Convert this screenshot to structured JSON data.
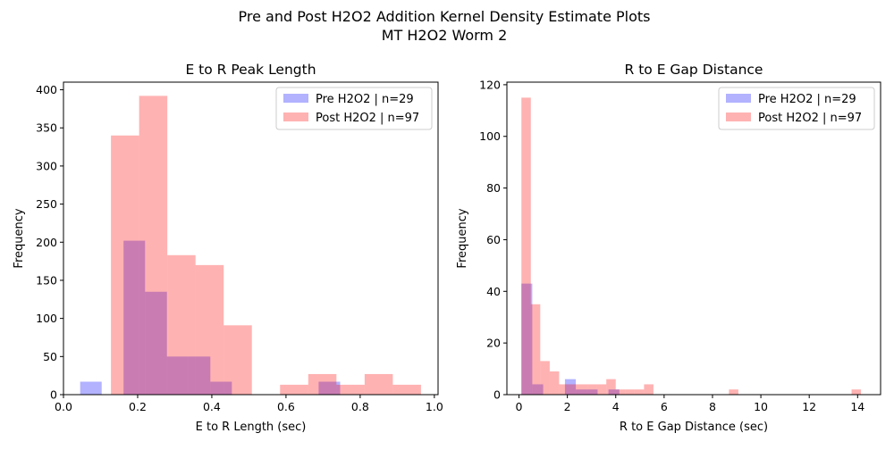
{
  "figure": {
    "title_line1": "Pre and Post H2O2 Addition Kernel Density Estimate Plots",
    "title_line2": "MT H2O2 Worm 2"
  },
  "colors": {
    "pre": "#0000ff",
    "post": "#ff0000",
    "pre_opacity": 0.3,
    "post_opacity": 0.3
  },
  "chart_data": [
    {
      "type": "histogram",
      "title": "E to R Peak Length",
      "xlabel": "E to R Length (sec)",
      "ylabel": "Frequency",
      "xlim": [
        0.0,
        1.01
      ],
      "ylim": [
        0,
        410
      ],
      "xticks": [
        0.0,
        0.2,
        0.4,
        0.6,
        0.8,
        1.0
      ],
      "xtick_labels": [
        "0.0",
        "0.2",
        "0.4",
        "0.6",
        "0.8",
        "1.0"
      ],
      "yticks": [
        0,
        50,
        100,
        150,
        200,
        250,
        300,
        350,
        400
      ],
      "ytick_labels": [
        "0",
        "50",
        "100",
        "150",
        "200",
        "250",
        "300",
        "350",
        "400"
      ],
      "legend_position": "upper right",
      "series": [
        {
          "name": "Pre H2O2 | n=29",
          "key": "pre",
          "bins": [
            [
              0.045,
              0.103,
              17
            ],
            [
              0.103,
              0.162,
              0
            ],
            [
              0.162,
              0.22,
              202
            ],
            [
              0.22,
              0.279,
              135
            ],
            [
              0.279,
              0.337,
              50
            ],
            [
              0.337,
              0.396,
              50
            ],
            [
              0.396,
              0.454,
              17
            ],
            [
              0.454,
              0.512,
              0
            ],
            [
              0.512,
              0.571,
              0
            ],
            [
              0.571,
              0.629,
              0
            ],
            [
              0.629,
              0.688,
              0
            ],
            [
              0.688,
              0.746,
              17
            ]
          ]
        },
        {
          "name": "Post H2O2 | n=97",
          "key": "post",
          "bins": [
            [
              0.128,
              0.204,
              340
            ],
            [
              0.204,
              0.28,
              392
            ],
            [
              0.28,
              0.356,
              183
            ],
            [
              0.356,
              0.432,
              170
            ],
            [
              0.432,
              0.508,
              91
            ],
            [
              0.508,
              0.584,
              0
            ],
            [
              0.584,
              0.66,
              13
            ],
            [
              0.66,
              0.736,
              27
            ],
            [
              0.736,
              0.812,
              13
            ],
            [
              0.812,
              0.888,
              27
            ],
            [
              0.888,
              0.964,
              13
            ]
          ]
        }
      ]
    },
    {
      "type": "histogram",
      "title": "R to E Gap Distance",
      "xlabel": "R to E Gap Distance (sec)",
      "ylabel": "Frequency",
      "xlim": [
        -0.5,
        14.95
      ],
      "ylim": [
        0,
        121
      ],
      "xticks": [
        0,
        2,
        4,
        6,
        8,
        10,
        12,
        14
      ],
      "xtick_labels": [
        "0",
        "2",
        "4",
        "6",
        "8",
        "10",
        "12",
        "14"
      ],
      "yticks": [
        0,
        20,
        40,
        60,
        80,
        100,
        120
      ],
      "ytick_labels": [
        "0",
        "20",
        "40",
        "60",
        "80",
        "100",
        "120"
      ],
      "legend_position": "upper right",
      "series": [
        {
          "name": "Pre H2O2 | n=29",
          "key": "pre",
          "bins": [
            [
              0.1,
              0.55,
              43
            ],
            [
              0.55,
              1.0,
              4
            ],
            [
              1.0,
              1.45,
              0
            ],
            [
              1.45,
              1.9,
              0
            ],
            [
              1.9,
              2.35,
              6
            ],
            [
              2.35,
              2.8,
              2
            ],
            [
              2.8,
              3.25,
              2
            ],
            [
              3.25,
              3.7,
              0
            ],
            [
              3.7,
              4.15,
              2
            ]
          ]
        },
        {
          "name": "Post H2O2 | n=97",
          "key": "post",
          "bins": [
            [
              0.1,
              0.49,
              115
            ],
            [
              0.49,
              0.88,
              35
            ],
            [
              0.88,
              1.27,
              13
            ],
            [
              1.27,
              1.66,
              9
            ],
            [
              1.66,
              2.05,
              4
            ],
            [
              2.05,
              2.44,
              4
            ],
            [
              2.44,
              2.83,
              4
            ],
            [
              2.83,
              3.22,
              4
            ],
            [
              3.22,
              3.61,
              4
            ],
            [
              3.61,
              4.0,
              6
            ],
            [
              4.0,
              4.39,
              2
            ],
            [
              4.39,
              4.78,
              2
            ],
            [
              4.78,
              5.17,
              2
            ],
            [
              5.17,
              5.56,
              4
            ],
            [
              8.68,
              9.07,
              2
            ],
            [
              13.75,
              14.14,
              2
            ]
          ]
        }
      ]
    }
  ]
}
